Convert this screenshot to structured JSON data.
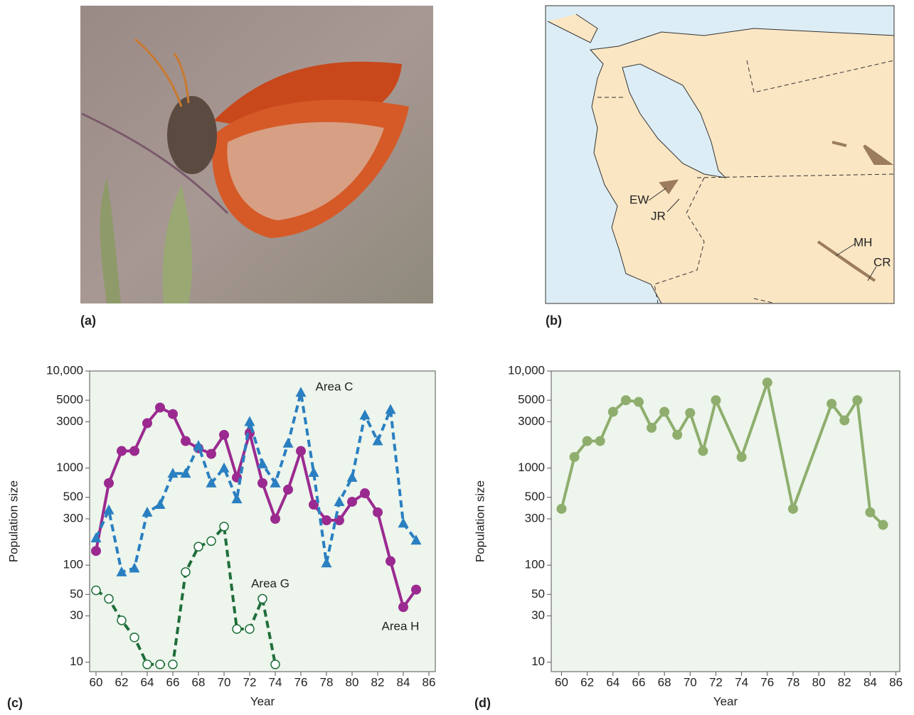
{
  "panel_labels": [
    "(a)",
    "(b)",
    "(c)",
    "(d)"
  ],
  "map": {
    "labels": [
      "EW",
      "JR",
      "MH",
      "CR"
    ]
  },
  "chart_data": [
    {
      "type": "line",
      "yscale": "log",
      "xlabel": "Year",
      "ylabel": "Population size",
      "x": [
        60,
        61,
        62,
        63,
        64,
        65,
        66,
        67,
        68,
        69,
        70,
        71,
        72,
        73,
        74,
        75,
        76,
        77,
        78,
        79,
        80,
        81,
        82,
        83,
        84,
        85
      ],
      "xlim": [
        59.5,
        86.5
      ],
      "xticks": [
        60,
        62,
        64,
        66,
        68,
        70,
        72,
        74,
        76,
        78,
        80,
        82,
        84,
        86
      ],
      "ylim": [
        8,
        10000
      ],
      "yticks": [
        10,
        30,
        50,
        100,
        300,
        500,
        1000,
        3000,
        5000,
        {
          "value": 10000,
          "label": "10,000"
        }
      ],
      "series": [
        {
          "name": "Area H",
          "color": "#9b2a90",
          "marker": "circle",
          "dashed": false,
          "values": [
            140,
            700,
            1500,
            1500,
            2900,
            4200,
            3600,
            1900,
            1600,
            1400,
            2200,
            800,
            2300,
            700,
            300,
            600,
            1500,
            420,
            290,
            290,
            450,
            550,
            350,
            110,
            37,
            56
          ]
        },
        {
          "name": "Area C",
          "color": "#2a7fc1",
          "marker": "triangle",
          "dashed": true,
          "values": [
            190,
            370,
            85,
            93,
            350,
            420,
            880,
            880,
            1700,
            700,
            1000,
            480,
            3000,
            1100,
            700,
            1800,
            6000,
            900,
            105,
            450,
            800,
            3500,
            1900,
            4000,
            270,
            180
          ]
        },
        {
          "name": "Area G",
          "color": "#1f6e3a",
          "marker": "open-circle",
          "dashed": true,
          "values": [
            55,
            45,
            27,
            18,
            9.5,
            9.5,
            9.5,
            85,
            155,
            177,
            250,
            22,
            22,
            45,
            9.5,
            null,
            null,
            null,
            null,
            null,
            null,
            null,
            null,
            null,
            null,
            null
          ]
        }
      ]
    },
    {
      "type": "line",
      "yscale": "log",
      "xlabel": "Year",
      "ylabel": "Population size",
      "x": [
        60,
        61,
        62,
        63,
        64,
        65,
        66,
        67,
        68,
        69,
        70,
        71,
        72,
        74,
        76,
        78,
        81,
        82,
        83,
        84,
        85
      ],
      "xlim": [
        59.2,
        86.3
      ],
      "xticks": [
        60,
        62,
        64,
        66,
        68,
        70,
        72,
        74,
        76,
        78,
        80,
        82,
        84,
        86
      ],
      "ylim": [
        8,
        10000
      ],
      "yticks": [
        10,
        30,
        50,
        100,
        300,
        500,
        1000,
        3000,
        5000,
        {
          "value": 10000,
          "label": "10,000"
        }
      ],
      "series": [
        {
          "color": "#8fae6e",
          "marker": "circle",
          "dashed": false,
          "values": [
            380,
            1300,
            1900,
            1900,
            3800,
            5000,
            4800,
            2600,
            3800,
            2200,
            3700,
            1500,
            5000,
            1300,
            7600,
            380,
            4600,
            3100,
            5000,
            350,
            260
          ]
        }
      ]
    }
  ]
}
